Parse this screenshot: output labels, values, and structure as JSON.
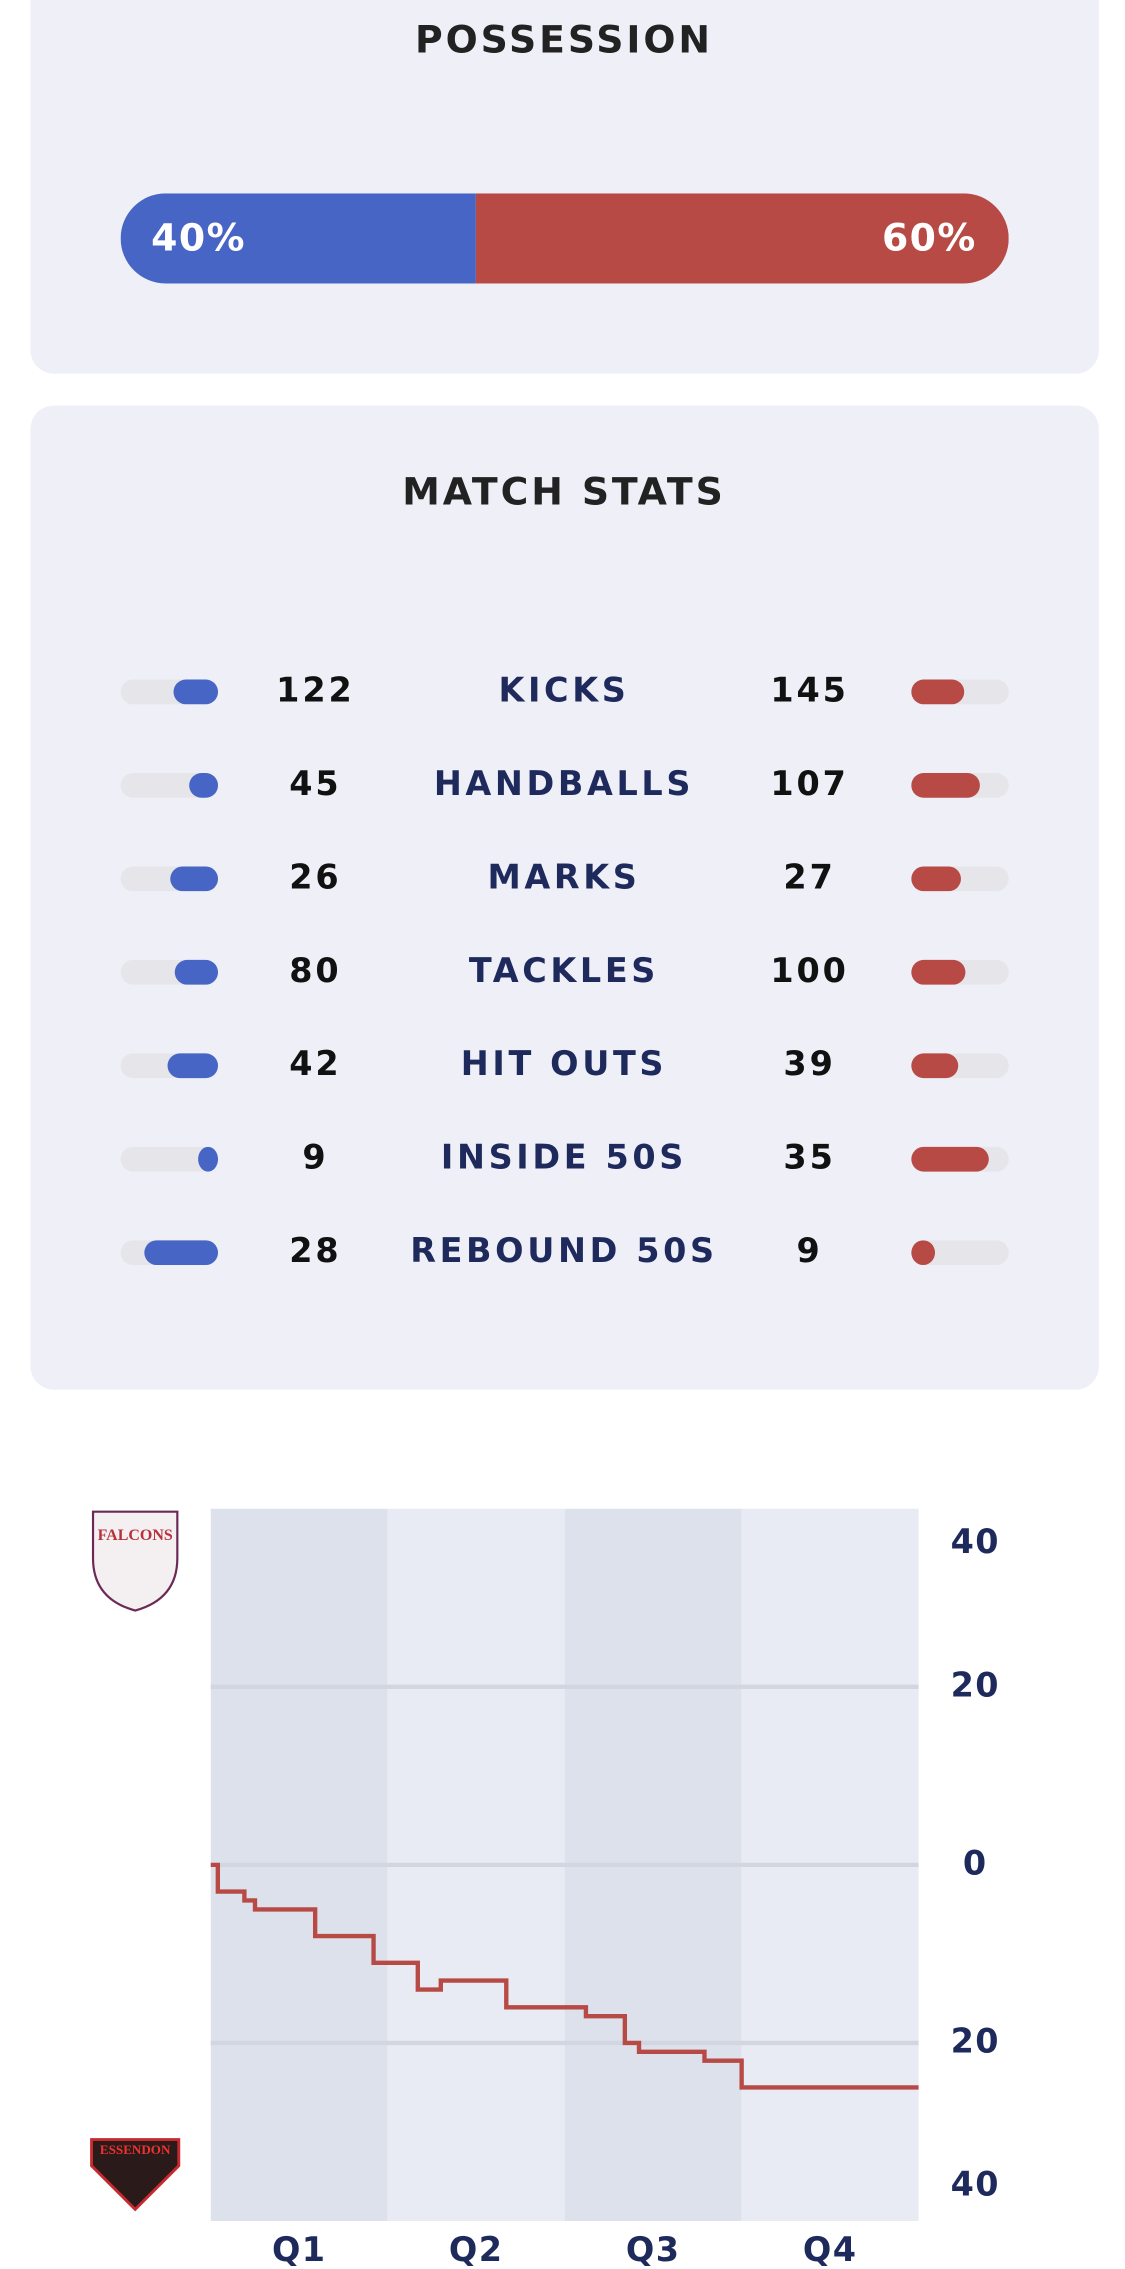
{
  "possession": {
    "title": "POSSESSION",
    "values": [
      40,
      60
    ],
    "value_labels": [
      "40%",
      "60%"
    ],
    "colors": [
      "#4765c4",
      "#b84a45"
    ]
  },
  "match_stats": {
    "title": "MATCH STATS",
    "rows": [
      {
        "label": "KICKS",
        "home": 122,
        "away": 145
      },
      {
        "label": "HANDBALLS",
        "home": 45,
        "away": 107
      },
      {
        "label": "MARKS",
        "home": 26,
        "away": 27
      },
      {
        "label": "TACKLES",
        "home": 80,
        "away": 100
      },
      {
        "label": "HIT OUTS",
        "home": 42,
        "away": 39
      },
      {
        "label": "INSIDE 50S",
        "home": 9,
        "away": 35
      },
      {
        "label": "REBOUND 50S",
        "home": 28,
        "away": 9
      }
    ]
  },
  "chart_data": {
    "type": "line",
    "step": true,
    "x": [
      0,
      0.04,
      0.19,
      0.25,
      0.59,
      0.92,
      1.17,
      1.3,
      1.67,
      2.12,
      2.34,
      2.42,
      2.79,
      3.0,
      4.0
    ],
    "series": [
      {
        "color": "#b84a45",
        "values": [
          0,
          -3,
          -4,
          -5,
          -8,
          -11,
          -14,
          -13,
          -16,
          -17,
          -20,
          -21,
          -22,
          -25,
          -25
        ]
      }
    ],
    "categories": [
      "Q1",
      "Q2",
      "Q3",
      "Q4"
    ],
    "xlim": [
      0,
      4
    ],
    "ylim": [
      -40,
      40
    ],
    "yticks": [
      {
        "value": -40,
        "label": "40"
      },
      {
        "value": -20,
        "label": "20"
      },
      0,
      20,
      40
    ],
    "grid": true,
    "team_labels": [
      "FALCONS",
      "ESSENDON"
    ]
  }
}
